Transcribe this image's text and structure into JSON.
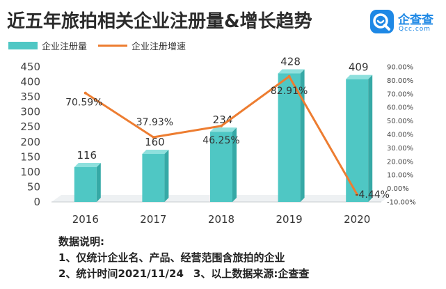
{
  "header": {
    "title": "近五年旅拍相关企业注册量&增长趋势"
  },
  "brand": {
    "name": "企查查",
    "sub": "Qcc.com",
    "color": "#1e88e5"
  },
  "legend": {
    "bar_label": "企业注册量",
    "line_label": "企业注册增速"
  },
  "chart_data": {
    "type": "bar",
    "categories": [
      "2016",
      "2017",
      "2018",
      "2019",
      "2020"
    ],
    "series": [
      {
        "name": "企业注册量",
        "type": "bar",
        "axis": "left",
        "values": [
          116,
          160,
          234,
          428,
          409
        ],
        "labels": [
          "116",
          "160",
          "234",
          "428",
          "409"
        ],
        "color": "#4fc7c4"
      },
      {
        "name": "企业注册增速",
        "type": "line",
        "axis": "right",
        "values": [
          70.59,
          37.93,
          46.25,
          82.91,
          -4.44
        ],
        "labels": [
          "70.59%",
          "37.93%",
          "46.25%",
          "82.91%",
          "-4.44%"
        ],
        "color": "#ed7d31"
      }
    ],
    "y_left": {
      "min": 0,
      "max": 450,
      "ticks": [
        "0",
        "50",
        "100",
        "150",
        "200",
        "250",
        "300",
        "350",
        "400",
        "450"
      ]
    },
    "y_right": {
      "min": -10,
      "max": 90,
      "ticks": [
        "-10.00%",
        "0.00%",
        "10.00%",
        "20.00%",
        "30.00%",
        "40.00%",
        "50.00%",
        "60.00%",
        "70.00%",
        "80.00%",
        "90.00%"
      ]
    },
    "grid": false,
    "legend_position": "top-left"
  },
  "notes": {
    "heading": "数据说明:",
    "line1": "1、仅统计企业名、产品、经营范围含旅拍的企业",
    "line2a": "2、统计时间2021/11/24",
    "line2b": "3、以上数据来源:企查查"
  }
}
